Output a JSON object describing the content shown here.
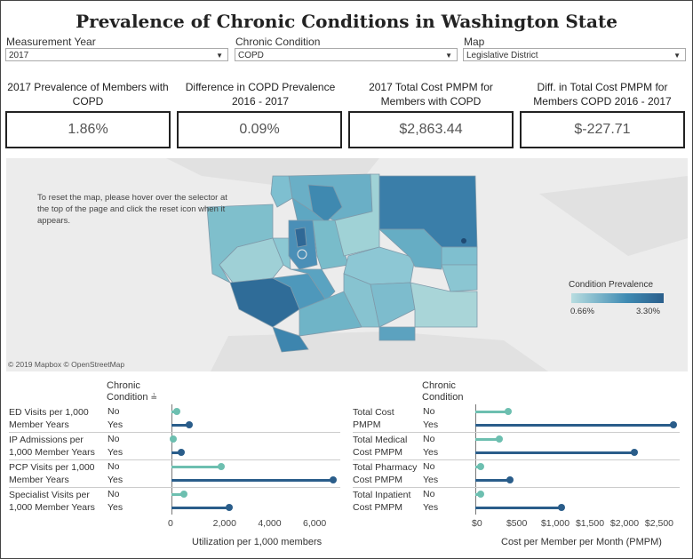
{
  "title": "Prevalence of Chronic Conditions in Washington State",
  "filters": [
    {
      "label": "Measurement Year",
      "value": "2017"
    },
    {
      "label": "Chronic Condition",
      "value": "COPD"
    },
    {
      "label": "Map",
      "value": "Legislative District"
    }
  ],
  "kpis": [
    {
      "title": "2017 Prevalence of Members with COPD",
      "value": "1.86%"
    },
    {
      "title": "Difference in COPD Prevalence 2016 - 2017",
      "value": "0.09%"
    },
    {
      "title": "2017 Total Cost PMPM for Members with COPD",
      "value": "$2,863.44"
    },
    {
      "title": "Diff. in Total Cost PMPM for Members COPD 2016 - 2017",
      "value": "$-227.71"
    }
  ],
  "map": {
    "note": "To reset the map, please hover over the selector at the top of the page and click the reset icon when it appears.",
    "legend_title": "Condition Prevalence",
    "legend_min": "0.66%",
    "legend_max": "3.30%",
    "credit": "© 2019 Mapbox © OpenStreetMap",
    "colors": {
      "low": "#b8dde0",
      "mid": "#5fa8c0",
      "high": "#2b5f8c"
    }
  },
  "colors": {
    "no": "#6dbfb0",
    "yes": "#2a5d8a"
  },
  "chart_data": [
    {
      "type": "bar",
      "chart_subtype": "lollipop",
      "header": "Chronic Condition",
      "xlabel": "Utilization per 1,000 members",
      "xlim": [
        0,
        7500
      ],
      "xticks": [
        "0",
        "2,000",
        "4,000",
        "6,000"
      ],
      "tick_values": [
        0,
        2000,
        4000,
        6000
      ],
      "categories": [
        "ED Visits per 1,000 Member Years",
        "IP Admissions per 1,000 Member Years",
        "PCP Visits per 1,000 Member Years",
        "Specialist Visits per 1,000 Member Years"
      ],
      "series": [
        {
          "name": "No",
          "values": [
            250,
            60,
            2200,
            560
          ]
        },
        {
          "name": "Yes",
          "values": [
            800,
            450,
            7200,
            2550
          ]
        }
      ]
    },
    {
      "type": "bar",
      "chart_subtype": "lollipop",
      "header": "Chronic Condition",
      "xlabel": "Cost per Member per Month (PMPM)",
      "xlim": [
        0,
        2950
      ],
      "xticks": [
        "$0",
        "$500",
        "$1,000",
        "$1,500",
        "$2,000",
        "$2,500"
      ],
      "tick_values": [
        0,
        500,
        1000,
        1500,
        2000,
        2500
      ],
      "categories": [
        "Total Cost PMPM",
        "Total Medical Cost PMPM",
        "Total Pharmacy Cost PMPM",
        "Total Inpatient Cost PMPM"
      ],
      "series": [
        {
          "name": "No",
          "values": [
            480,
            350,
            80,
            80
          ]
        },
        {
          "name": "Yes",
          "values": [
            2860,
            2300,
            500,
            1240
          ]
        }
      ]
    }
  ]
}
